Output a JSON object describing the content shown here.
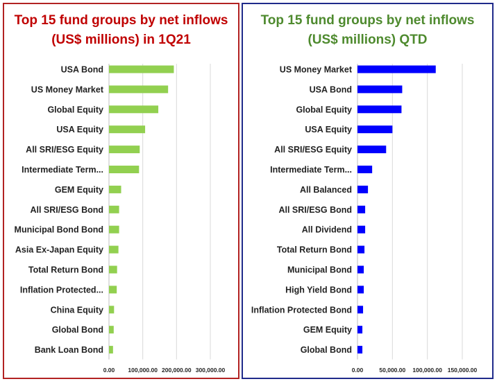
{
  "chart_data": [
    {
      "type": "bar",
      "orientation": "horizontal",
      "title": "Top 15 fund groups by net inflows (US$ millions) in 1Q21",
      "categories": [
        "USA Bond",
        "US Money Market",
        "Global Equity",
        "USA Equity",
        "All SRI/ESG Equity",
        "Intermediate Term...",
        "GEM Equity",
        "All SRI/ESG Bond",
        "Municipal Bond Bond",
        "Asia Ex-Japan Equity",
        "Total Return Bond",
        "Inflation Protected...",
        "China Equity",
        "Global Bond",
        "Bank Loan Bond"
      ],
      "values": [
        192000,
        175000,
        146000,
        107000,
        91000,
        89000,
        36000,
        30000,
        30000,
        28000,
        24000,
        23000,
        15000,
        14000,
        12000
      ],
      "xlim": [
        0,
        300000
      ],
      "xticks": [
        "0.00",
        "100,000.00",
        "200,000.00",
        "300,000.00"
      ],
      "grid": true,
      "bar_color": "#92d050",
      "title_color": "#c00000",
      "border_color": "#b22222"
    },
    {
      "type": "bar",
      "orientation": "horizontal",
      "title": "Top 15 fund groups by net inflows (US$ millions) QTD",
      "categories": [
        "US Money Market",
        "USA Bond",
        "Global Equity",
        "USA Equity",
        "All SRI/ESG Equity",
        "Intermediate Term...",
        "All Balanced",
        "All SRI/ESG Bond",
        "All Dividend",
        "Total Return Bond",
        "Municipal Bond",
        "High Yield Bond",
        "Inflation Protected Bond",
        "GEM Equity",
        "Global Bond"
      ],
      "values": [
        112000,
        64000,
        63000,
        50000,
        41000,
        21000,
        15000,
        11000,
        11000,
        10000,
        9000,
        9000,
        8000,
        7000,
        7000
      ],
      "xlim": [
        0,
        150000
      ],
      "xticks": [
        "0.00",
        "50,000.00",
        "100,000.00",
        "150,000.00"
      ],
      "grid": true,
      "bar_color": "#0000ff",
      "title_color": "#4e8a2e",
      "border_color": "#1f2a8a"
    }
  ]
}
